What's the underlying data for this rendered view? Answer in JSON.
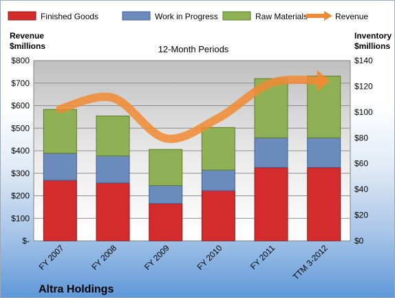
{
  "company": "Altra Holdings",
  "colors": {
    "finished": "#d42c2c",
    "wip": "#6b8bbd",
    "raw": "#8fb156",
    "revenue": "#f08a32"
  },
  "chart_data": {
    "type": "bar",
    "stacked": true,
    "title": "12-Month Periods",
    "categories": [
      "FY 2007",
      "FY 2008",
      "FY 2009",
      "FY 2010",
      "FY 2011",
      "TTM 3-2012"
    ],
    "series": [
      {
        "name": "Finished Goods",
        "axis": "right",
        "values": [
          47,
          45,
          29,
          39,
          57,
          57
        ]
      },
      {
        "name": "Work in Progress",
        "axis": "right",
        "values": [
          21,
          21,
          14,
          16,
          23,
          23
        ]
      },
      {
        "name": "Raw Materials",
        "axis": "right",
        "values": [
          34,
          31,
          28,
          33,
          46,
          48
        ]
      },
      {
        "name": "Revenue",
        "type": "line",
        "axis": "left",
        "values": [
          585,
          635,
          455,
          545,
          700,
          710
        ]
      }
    ],
    "left_axis": {
      "label_line1": "Revenue",
      "label_line2": "$millions",
      "ylim": [
        0,
        800
      ],
      "ticks": [
        "$-",
        "$100",
        "$200",
        "$300",
        "$400",
        "$500",
        "$600",
        "$700",
        "$800"
      ]
    },
    "right_axis": {
      "label_line1": "Inventory",
      "label_line2": "$millions",
      "ylim": [
        0,
        140
      ],
      "ticks": [
        "$0",
        "$20",
        "$40",
        "$60",
        "$80",
        "$100",
        "$120",
        "$140"
      ]
    },
    "grid": true,
    "legend": "top"
  }
}
